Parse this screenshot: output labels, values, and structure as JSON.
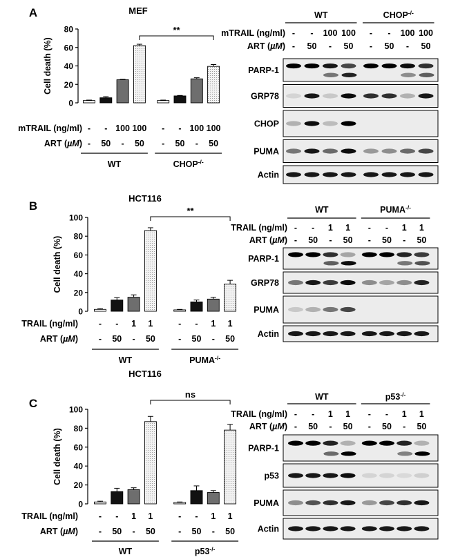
{
  "chart_data": [
    {
      "panel": "A",
      "type": "bar",
      "title": "MEF",
      "ylabel": "Cell death (%)",
      "ylim": [
        0,
        80
      ],
      "yticks": [
        "0",
        "20",
        "40",
        "60",
        "80"
      ],
      "treatments": [
        {
          "label": "mTRAIL (ng/ml)",
          "values": [
            "-",
            "-",
            "100",
            "100",
            "-",
            "-",
            "100",
            "100"
          ]
        },
        {
          "label": "ART (µM)",
          "values": [
            "-",
            "50",
            "-",
            "50",
            "-",
            "50",
            "-",
            "50"
          ]
        }
      ],
      "groups": [
        "WT",
        "CHOP-/-"
      ],
      "values": [
        2.5,
        5.5,
        25,
        62,
        2.5,
        7.5,
        26,
        39.5
      ],
      "errors": [
        0.5,
        1.2,
        0.5,
        1.5,
        0.5,
        0.5,
        1.2,
        2
      ],
      "significance": "**",
      "bracket": [
        3,
        7
      ]
    },
    {
      "panel": "B",
      "type": "bar",
      "title": "HCT116",
      "ylabel": "Cell death (%)",
      "ylim": [
        0,
        100
      ],
      "yticks": [
        "0",
        "20",
        "40",
        "60",
        "80",
        "100"
      ],
      "treatments": [
        {
          "label": "TRAIL (ng/ml)",
          "values": [
            "-",
            "-",
            "1",
            "1",
            "-",
            "-",
            "1",
            "1"
          ]
        },
        {
          "label": "ART (µM)",
          "values": [
            "-",
            "50",
            "-",
            "50",
            "-",
            "50",
            "-",
            "50"
          ]
        }
      ],
      "groups": [
        "WT",
        "PUMA-/-"
      ],
      "values": [
        2,
        12,
        15,
        86,
        1.5,
        10,
        13,
        29
      ],
      "errors": [
        0.8,
        2.5,
        2.5,
        3,
        0.5,
        2,
        2,
        4
      ],
      "significance": "**",
      "bracket": [
        3,
        7
      ]
    },
    {
      "panel": "C",
      "type": "bar",
      "title": "HCT116",
      "ylabel": "Cell death (%)",
      "ylim": [
        0,
        100
      ],
      "yticks": [
        "0",
        "20",
        "40",
        "60",
        "80",
        "100"
      ],
      "treatments": [
        {
          "label": "TRAIL (ng/ml)",
          "values": [
            "-",
            "-",
            "1",
            "1",
            "-",
            "-",
            "1",
            "1"
          ]
        },
        {
          "label": "ART (µM)",
          "values": [
            "-",
            "50",
            "-",
            "50",
            "-",
            "50",
            "-",
            "50"
          ]
        }
      ],
      "groups": [
        "WT",
        "p53-/-"
      ],
      "values": [
        2,
        13,
        15,
        87,
        1.5,
        14,
        12,
        78
      ],
      "errors": [
        0.8,
        3.5,
        2,
        5.5,
        0.5,
        5,
        2,
        6
      ],
      "significance": "ns",
      "bracket": [
        3,
        7
      ]
    }
  ],
  "blots": [
    {
      "panel": "A",
      "groups": [
        "WT",
        "CHOP-/-"
      ],
      "treatments": [
        {
          "label": "mTRAIL (ng/ml)",
          "values": [
            "-",
            "-",
            "100",
            "100",
            "-",
            "-",
            "100",
            "100"
          ]
        },
        {
          "label": "ART (µM)",
          "values": [
            "-",
            "50",
            "-",
            "50",
            "-",
            "50",
            "-",
            "50"
          ]
        }
      ],
      "rows": [
        "PARP-1",
        "GRP78",
        "CHOP",
        "PUMA",
        "Actin"
      ]
    },
    {
      "panel": "B",
      "groups": [
        "WT",
        "PUMA-/-"
      ],
      "treatments": [
        {
          "label": "TRAIL (ng/ml)",
          "values": [
            "-",
            "-",
            "1",
            "1",
            "-",
            "-",
            "1",
            "1"
          ]
        },
        {
          "label": "ART (µM)",
          "values": [
            "-",
            "50",
            "-",
            "50",
            "-",
            "50",
            "-",
            "50"
          ]
        }
      ],
      "rows": [
        "PARP-1",
        "GRP78",
        "PUMA",
        "Actin"
      ]
    },
    {
      "panel": "C",
      "groups": [
        "WT",
        "p53-/-"
      ],
      "treatments": [
        {
          "label": "TRAIL (ng/ml)",
          "values": [
            "-",
            "-",
            "1",
            "1",
            "-",
            "-",
            "1",
            "1"
          ]
        },
        {
          "label": "ART (µM)",
          "values": [
            "-",
            "50",
            "-",
            "50",
            "-",
            "50",
            "-",
            "50"
          ]
        }
      ],
      "rows": [
        "PARP-1",
        "p53",
        "PUMA",
        "Actin"
      ]
    }
  ]
}
